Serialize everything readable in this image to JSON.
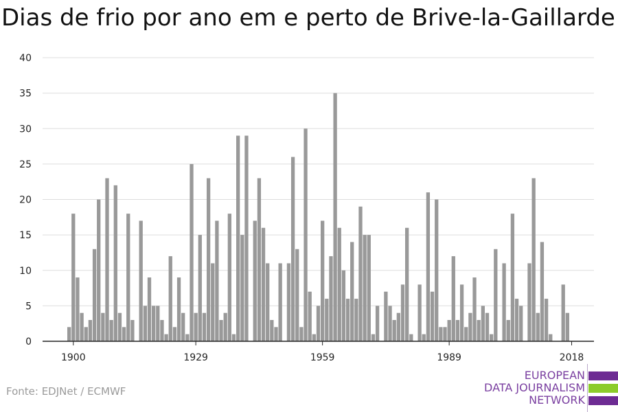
{
  "title": "Dias de frio por ano em e perto de Brive-la-Gaillarde",
  "source": "Fonte: EDJNet / ECMWF",
  "logo": {
    "lines": [
      "EUROPEAN",
      "DATA JOURNALISM",
      "NETWORK"
    ],
    "colors": {
      "purple": "#6d2b93",
      "green": "#8ccc2a"
    }
  },
  "colors": {
    "bar": "#999999",
    "grid": "#dddddd",
    "axis": "#222222"
  },
  "chart_data": {
    "type": "bar",
    "title": "Dias de frio por ano em e perto de Brive-la-Gaillarde",
    "xlabel": "",
    "ylabel": "",
    "x_start": 1899,
    "x": [
      1899,
      1900,
      1901,
      1902,
      1903,
      1904,
      1905,
      1906,
      1907,
      1908,
      1909,
      1910,
      1911,
      1912,
      1913,
      1914,
      1915,
      1916,
      1917,
      1918,
      1919,
      1920,
      1921,
      1922,
      1923,
      1924,
      1925,
      1926,
      1927,
      1928,
      1929,
      1930,
      1931,
      1932,
      1933,
      1934,
      1935,
      1936,
      1937,
      1938,
      1939,
      1940,
      1941,
      1942,
      1943,
      1944,
      1945,
      1946,
      1947,
      1948,
      1949,
      1950,
      1951,
      1952,
      1953,
      1954,
      1955,
      1956,
      1957,
      1958,
      1959,
      1960,
      1961,
      1962,
      1963,
      1964,
      1965,
      1966,
      1967,
      1968,
      1969,
      1970,
      1971,
      1972,
      1973,
      1974,
      1975,
      1976,
      1977,
      1978,
      1979,
      1980,
      1981,
      1982,
      1983,
      1984,
      1985,
      1986,
      1987,
      1988,
      1989,
      1990,
      1991,
      1992,
      1993,
      1994,
      1995,
      1996,
      1997,
      1998,
      1999,
      2000,
      2001,
      2002,
      2003,
      2004,
      2005,
      2006,
      2007,
      2008,
      2009,
      2010,
      2011,
      2012,
      2013,
      2014,
      2015,
      2016,
      2017,
      2018,
      2019
    ],
    "values": [
      2,
      18,
      9,
      4,
      2,
      3,
      13,
      20,
      4,
      23,
      3,
      22,
      4,
      2,
      18,
      3,
      0,
      17,
      5,
      9,
      5,
      5,
      3,
      1,
      12,
      2,
      9,
      4,
      1,
      25,
      4,
      15,
      4,
      23,
      11,
      17,
      3,
      4,
      18,
      1,
      29,
      15,
      29,
      0,
      17,
      23,
      16,
      11,
      3,
      2,
      11,
      0,
      11,
      26,
      13,
      2,
      30,
      7,
      1,
      5,
      17,
      6,
      12,
      35,
      16,
      10,
      6,
      14,
      6,
      19,
      15,
      15,
      1,
      5,
      0,
      7,
      5,
      3,
      4,
      8,
      16,
      1,
      0,
      8,
      1,
      21,
      7,
      20,
      2,
      2,
      3,
      12,
      3,
      8,
      2,
      4,
      9,
      3,
      5,
      4,
      1,
      13,
      0,
      11,
      3,
      18,
      6,
      5,
      0,
      11,
      23,
      4,
      14,
      6,
      1,
      0,
      0,
      8,
      4,
      0,
      0
    ],
    "xticks": [
      1900,
      1929,
      1959,
      1989,
      2018
    ],
    "yticks": [
      0,
      5,
      10,
      15,
      20,
      25,
      30,
      35,
      40
    ],
    "ylim": [
      0,
      40
    ],
    "grid": true,
    "legend": "none"
  }
}
